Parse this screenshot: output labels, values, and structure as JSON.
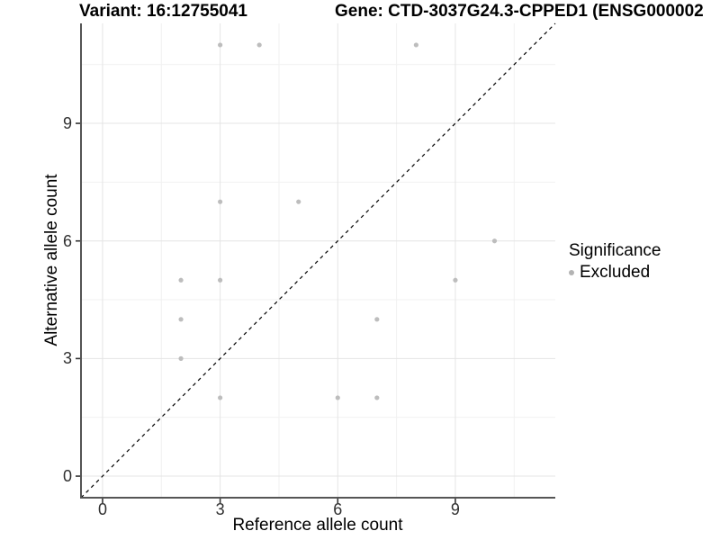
{
  "header": {
    "title_left": "Variant: 16:12755041",
    "title_right": "Gene: CTD-3037G24.3-CPPED1 (ENSG000002"
  },
  "axes": {
    "x_label": "Reference allele count",
    "y_label": "Alternative allele count"
  },
  "legend": {
    "title": "Significance",
    "items": [
      {
        "label": "Excluded",
        "color": "#b3b3b3"
      }
    ]
  },
  "colors": {
    "axis_line": "#555555",
    "tick_mark": "#333333",
    "tick_label": "#303030",
    "grid_major": "#e4e4e4",
    "grid_minor": "#f1f1f1",
    "point": "#bdbdbd",
    "identity_line": "#000000"
  },
  "chart_data": {
    "type": "scatter",
    "title": "Variant: 16:12755041  |  Gene: CTD-3037G24.3-CPPED1 (ENSG000002",
    "xlabel": "Reference allele count",
    "ylabel": "Alternative allele count",
    "xlim": [
      -0.55,
      11.55
    ],
    "ylim": [
      -0.55,
      11.55
    ],
    "x_major_ticks": [
      0,
      3,
      6,
      9
    ],
    "y_major_ticks": [
      0,
      3,
      6,
      9
    ],
    "x_minor_gridlines": [
      1.5,
      4.5,
      7.5,
      10.5
    ],
    "y_minor_gridlines": [
      1.5,
      4.5,
      7.5,
      10.5
    ],
    "grid": "major+minor",
    "legend_position": "right",
    "series": [
      {
        "name": "Excluded",
        "marker": "circle",
        "color": "#bdbdbd",
        "points": [
          [
            3,
            11
          ],
          [
            4,
            11
          ],
          [
            8,
            11
          ],
          [
            3,
            7
          ],
          [
            5,
            7
          ],
          [
            10,
            6
          ],
          [
            2,
            5
          ],
          [
            3,
            5
          ],
          [
            9,
            5
          ],
          [
            2,
            4
          ],
          [
            7,
            4
          ],
          [
            2,
            3
          ],
          [
            3,
            2
          ],
          [
            6,
            2
          ],
          [
            7,
            2
          ]
        ]
      }
    ],
    "reference_line": {
      "kind": "identity",
      "slope": 1,
      "intercept": 0,
      "style": "dashed",
      "color": "#000000"
    }
  }
}
